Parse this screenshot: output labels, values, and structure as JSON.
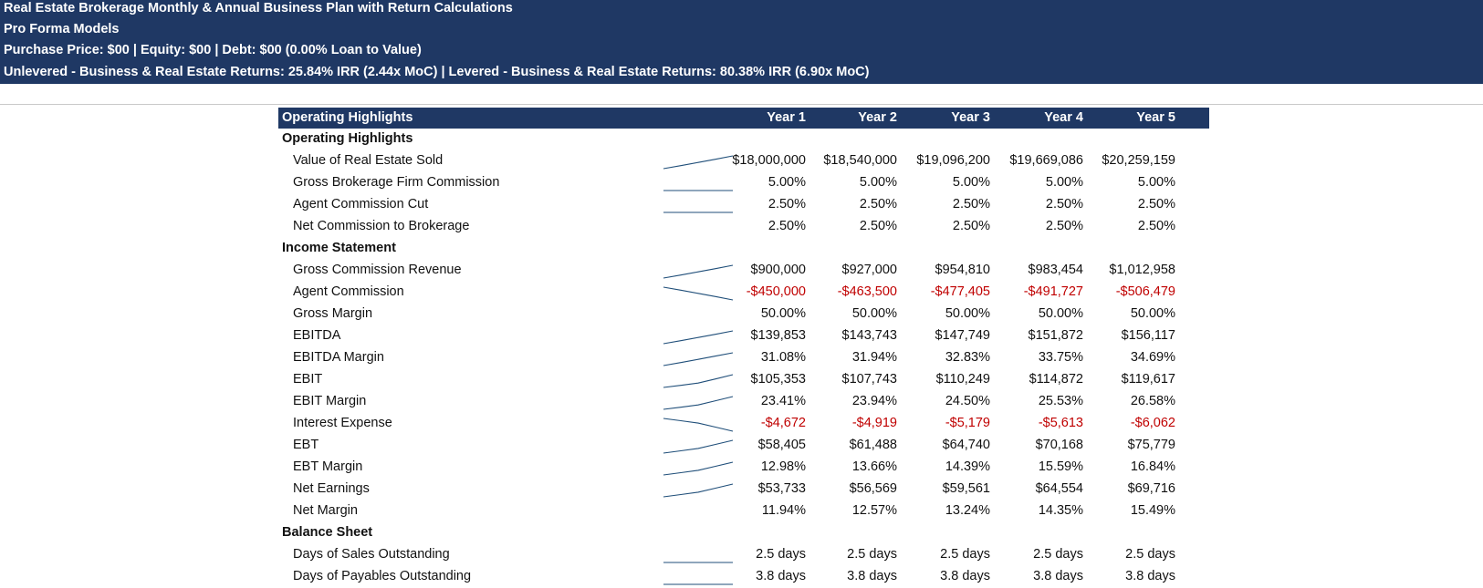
{
  "banner": {
    "line1": "Real Estate Brokerage Monthly & Annual Business Plan with Return Calculations",
    "line2": "Pro Forma Models",
    "line3": "Purchase Price: $00 | Equity: $00 | Debt: $00 (0.00% Loan to Value)",
    "line4": "Unlevered - Business & Real Estate Returns: 25.84% IRR (2.44x MoC) | Levered - Business & Real Estate Returns: 80.38% IRR (6.90x MoC)"
  },
  "table": {
    "header_label": "Operating Highlights",
    "years": [
      "Year 1",
      "Year 2",
      "Year 3",
      "Year 4",
      "Year 5"
    ],
    "rows": [
      {
        "type": "section",
        "label": "Operating Highlights"
      },
      {
        "type": "item",
        "label": "Value of Real Estate Sold",
        "values": [
          "$18,000,000",
          "$18,540,000",
          "$19,096,200",
          "$19,669,086",
          "$20,259,159"
        ],
        "trend": [
          18000000,
          18540000,
          19096200,
          19669086,
          20259159
        ]
      },
      {
        "type": "item",
        "label": "Gross Brokerage Firm Commission",
        "values": [
          "5.00%",
          "5.00%",
          "5.00%",
          "5.00%",
          "5.00%"
        ],
        "trend": [
          5,
          5,
          5,
          5,
          5
        ]
      },
      {
        "type": "item",
        "label": "Agent Commission Cut",
        "values": [
          "2.50%",
          "2.50%",
          "2.50%",
          "2.50%",
          "2.50%"
        ],
        "trend": [
          2.5,
          2.5,
          2.5,
          2.5,
          2.5
        ]
      },
      {
        "type": "item",
        "label": "Net Commission to Brokerage",
        "values": [
          "2.50%",
          "2.50%",
          "2.50%",
          "2.50%",
          "2.50%"
        ]
      },
      {
        "type": "section",
        "label": "Income Statement"
      },
      {
        "type": "item",
        "label": "Gross Commission Revenue",
        "values": [
          "$900,000",
          "$927,000",
          "$954,810",
          "$983,454",
          "$1,012,958"
        ],
        "trend": [
          900000,
          927000,
          954810,
          983454,
          1012958
        ]
      },
      {
        "type": "item",
        "label": "Agent Commission",
        "values": [
          "-$450,000",
          "-$463,500",
          "-$477,405",
          "-$491,727",
          "-$506,479"
        ],
        "negative": true,
        "trend": [
          -450000,
          -463500,
          -477405,
          -491727,
          -506479
        ]
      },
      {
        "type": "item",
        "label": "Gross Margin",
        "values": [
          "50.00%",
          "50.00%",
          "50.00%",
          "50.00%",
          "50.00%"
        ]
      },
      {
        "type": "item",
        "label": "EBITDA",
        "values": [
          "$139,853",
          "$143,743",
          "$147,749",
          "$151,872",
          "$156,117"
        ],
        "trend": [
          139853,
          143743,
          147749,
          151872,
          156117
        ]
      },
      {
        "type": "item",
        "label": "EBITDA Margin",
        "values": [
          "31.08%",
          "31.94%",
          "32.83%",
          "33.75%",
          "34.69%"
        ],
        "trend": [
          31.08,
          31.94,
          32.83,
          33.75,
          34.69
        ]
      },
      {
        "type": "item",
        "label": "EBIT",
        "values": [
          "$105,353",
          "$107,743",
          "$110,249",
          "$114,872",
          "$119,617"
        ],
        "trend": [
          105353,
          107743,
          110249,
          114872,
          119617
        ]
      },
      {
        "type": "item",
        "label": "EBIT Margin",
        "values": [
          "23.41%",
          "23.94%",
          "24.50%",
          "25.53%",
          "26.58%"
        ],
        "trend": [
          23.41,
          23.94,
          24.5,
          25.53,
          26.58
        ]
      },
      {
        "type": "item",
        "label": "Interest Expense",
        "values": [
          "-$4,672",
          "-$4,919",
          "-$5,179",
          "-$5,613",
          "-$6,062"
        ],
        "negative": true,
        "trend": [
          -4672,
          -4919,
          -5179,
          -5613,
          -6062
        ]
      },
      {
        "type": "item",
        "label": "EBT",
        "values": [
          "$58,405",
          "$61,488",
          "$64,740",
          "$70,168",
          "$75,779"
        ],
        "trend": [
          58405,
          61488,
          64740,
          70168,
          75779
        ]
      },
      {
        "type": "item",
        "label": "EBT Margin",
        "values": [
          "12.98%",
          "13.66%",
          "14.39%",
          "15.59%",
          "16.84%"
        ],
        "trend": [
          12.98,
          13.66,
          14.39,
          15.59,
          16.84
        ]
      },
      {
        "type": "item",
        "label": "Net Earnings",
        "values": [
          "$53,733",
          "$56,569",
          "$59,561",
          "$64,554",
          "$69,716"
        ],
        "trend": [
          53733,
          56569,
          59561,
          64554,
          69716
        ]
      },
      {
        "type": "item",
        "label": "Net Margin",
        "values": [
          "11.94%",
          "12.57%",
          "13.24%",
          "14.35%",
          "15.49%"
        ]
      },
      {
        "type": "section",
        "label": "Balance Sheet"
      },
      {
        "type": "item",
        "label": "Days of Sales Outstanding",
        "values": [
          "2.5 days",
          "2.5 days",
          "2.5 days",
          "2.5 days",
          "2.5 days"
        ],
        "trend": [
          2.5,
          2.5,
          2.5,
          2.5,
          2.5
        ]
      },
      {
        "type": "item",
        "label": "Days of Payables Outstanding",
        "values": [
          "3.8 days",
          "3.8 days",
          "3.8 days",
          "3.8 days",
          "3.8 days"
        ],
        "trend": [
          3.8,
          3.8,
          3.8,
          3.8,
          3.8
        ]
      }
    ]
  },
  "colors": {
    "header_bg": "#1f3864",
    "negative": "#c00000",
    "sparkline": "#1f4e79"
  }
}
